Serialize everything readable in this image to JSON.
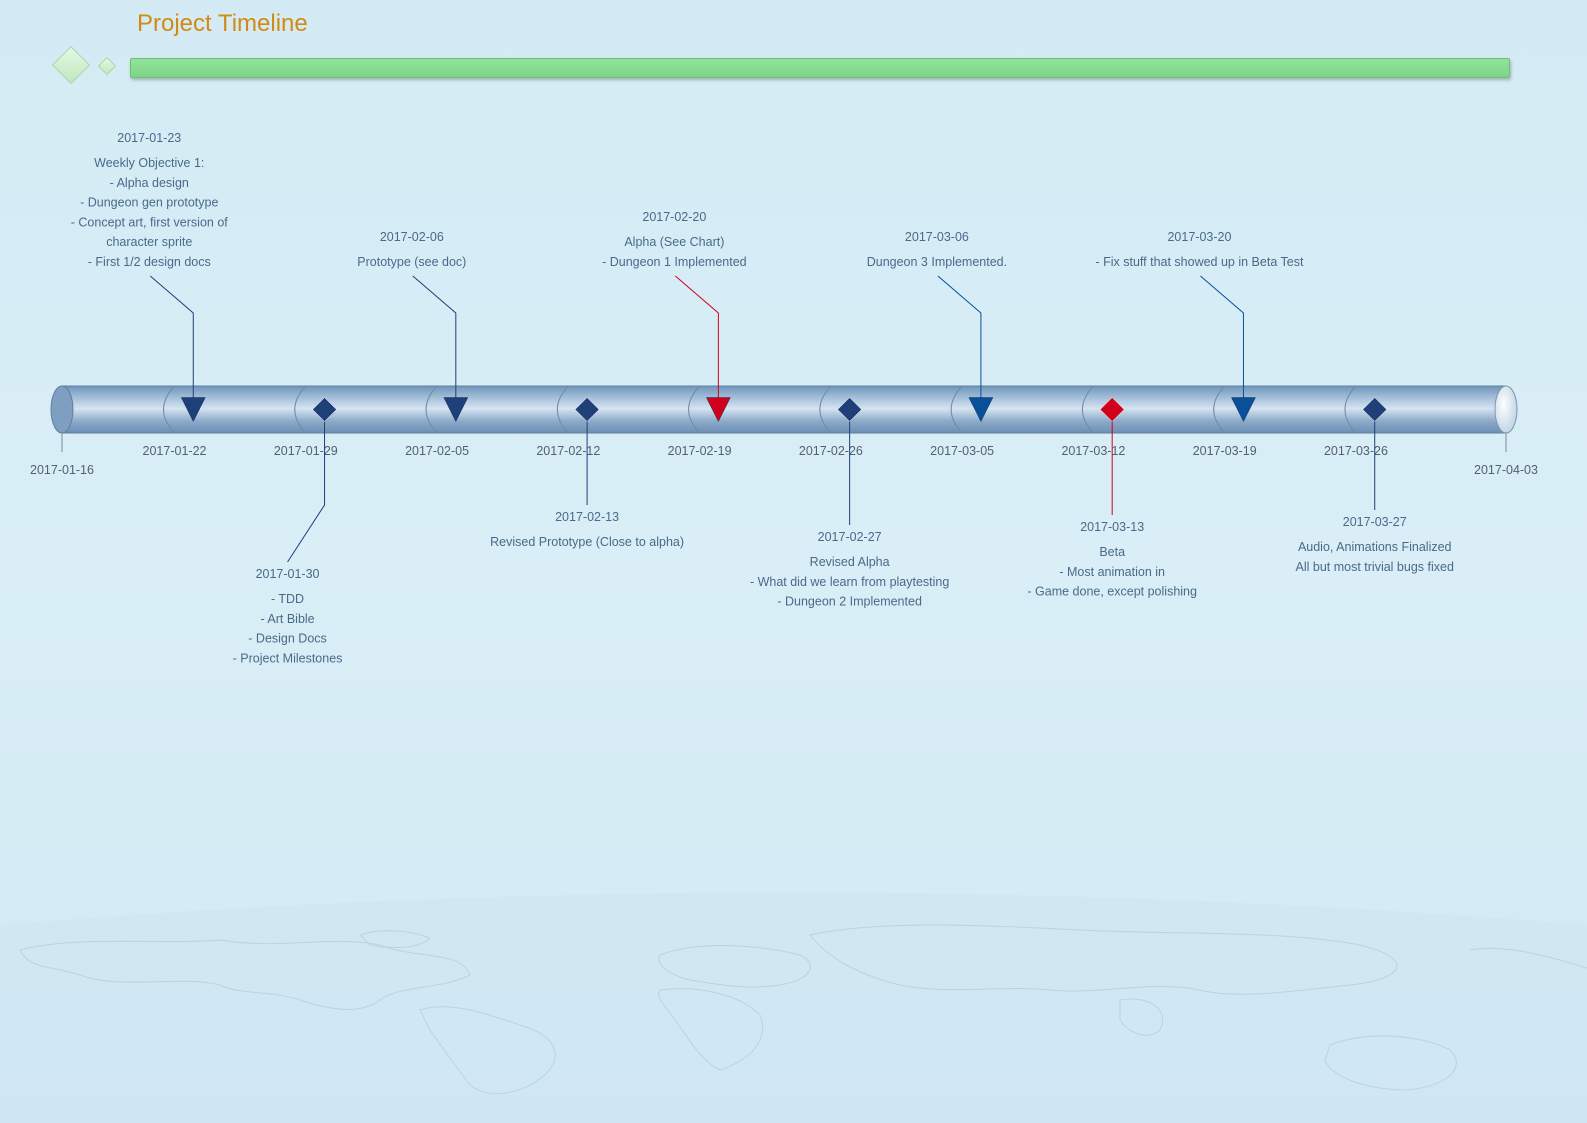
{
  "title": "Project Timeline",
  "colors": {
    "title": "#d38a10",
    "header_bar": "#86dc8e",
    "tube": "#8fb4d4",
    "marker_dark": "#1f3f78",
    "marker_blue": "#08509a",
    "marker_red": "#d0021b",
    "event_text": "#4a6a8a"
  },
  "timeline": {
    "start": "2017-01-16",
    "end": "2017-04-03",
    "ticks": [
      "2017-01-22",
      "2017-01-29",
      "2017-02-05",
      "2017-02-12",
      "2017-02-19",
      "2017-02-26",
      "2017-03-05",
      "2017-03-12",
      "2017-03-19",
      "2017-03-26"
    ]
  },
  "events": [
    {
      "date": "2017-01-23",
      "marker": "triangle",
      "color": "dark",
      "side": "above",
      "lines": [
        "Weekly Objective 1:",
        "- Alpha design",
        "- Dungeon gen prototype",
        "- Concept art, first version of",
        "character sprite",
        "- First 1/2 design docs"
      ]
    },
    {
      "date": "2017-01-30",
      "marker": "diamond",
      "color": "dark",
      "side": "below",
      "lines": [
        "- TDD",
        "- Art Bible",
        "- Design Docs",
        "- Project Milestones"
      ]
    },
    {
      "date": "2017-02-06",
      "marker": "triangle",
      "color": "dark",
      "side": "above",
      "lines": [
        "Prototype (see doc)"
      ]
    },
    {
      "date": "2017-02-13",
      "marker": "diamond",
      "color": "dark",
      "side": "below",
      "lines": [
        "Revised Prototype (Close to alpha)"
      ]
    },
    {
      "date": "2017-02-20",
      "marker": "triangle",
      "color": "red",
      "side": "above",
      "lines": [
        "Alpha (See Chart)",
        "- Dungeon 1 Implemented"
      ]
    },
    {
      "date": "2017-02-27",
      "marker": "diamond",
      "color": "dark",
      "side": "below",
      "lines": [
        "Revised Alpha",
        "- What did we learn from playtesting",
        "- Dungeon 2 Implemented"
      ]
    },
    {
      "date": "2017-03-06",
      "marker": "triangle",
      "color": "blue",
      "side": "above",
      "lines": [
        "Dungeon 3 Implemented."
      ]
    },
    {
      "date": "2017-03-13",
      "marker": "diamond",
      "color": "red",
      "side": "below",
      "lines": [
        "Beta",
        "- Most animation in",
        "- Game done, except polishing"
      ]
    },
    {
      "date": "2017-03-20",
      "marker": "triangle",
      "color": "blue",
      "side": "above",
      "lines": [
        "- Fix stuff that showed up in Beta Test"
      ]
    },
    {
      "date": "2017-03-27",
      "marker": "diamond",
      "color": "dark",
      "side": "below",
      "lines": [
        "Audio, Animations Finalized",
        "All but most trivial bugs fixed"
      ]
    }
  ]
}
